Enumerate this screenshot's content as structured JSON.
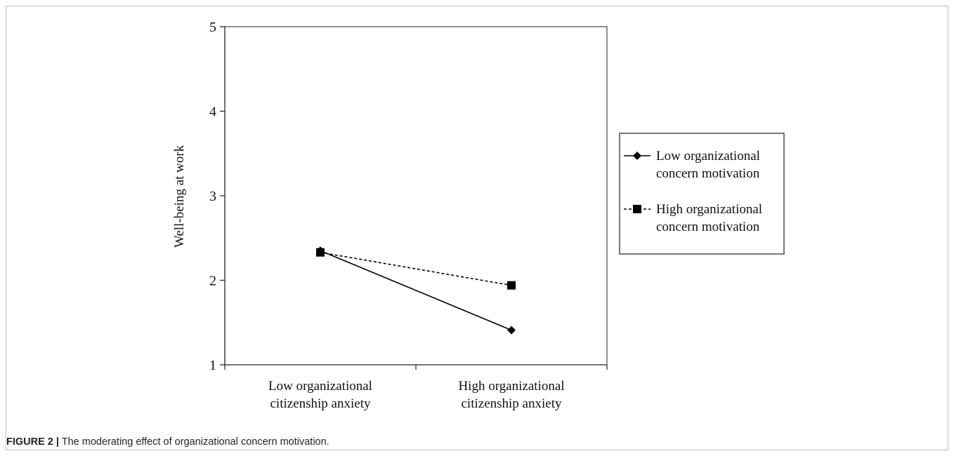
{
  "figure": {
    "label": "FIGURE 2 |",
    "caption": " The moderating effect of organizational concern motivation."
  },
  "chart_data": {
    "type": "line",
    "title": "",
    "xlabel": "",
    "ylabel": "Well-being at work",
    "ylim": [
      1,
      5
    ],
    "yticks": [
      1,
      2,
      3,
      4,
      5
    ],
    "categories": [
      [
        "Low organizational",
        "citizenship anxiety"
      ],
      [
        "High organizational",
        "citizenship anxiety"
      ]
    ],
    "grid": false,
    "legend_position": "right",
    "series": [
      {
        "name_lines": [
          "Low organizational",
          "concern motivation"
        ],
        "values": [
          2.35,
          1.41
        ],
        "marker": "diamond",
        "line": "solid",
        "color": "#000000"
      },
      {
        "name_lines": [
          "High organizational",
          "concern motivation"
        ],
        "values": [
          2.33,
          1.94
        ],
        "marker": "square",
        "line": "dashed",
        "color": "#000000"
      }
    ]
  }
}
